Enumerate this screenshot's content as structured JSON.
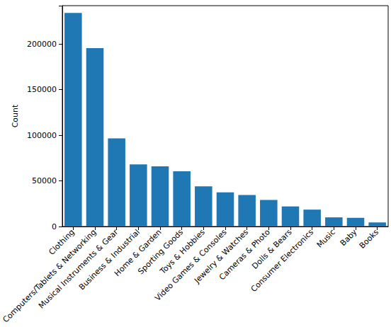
{
  "chart_data": {
    "type": "bar",
    "y_label": "Count",
    "categories": [
      "Clothing",
      "Computers/Tablets & Networking",
      "Musical Instruments & Gear",
      "Business & Industrial",
      "Home & Garden",
      "Sporting Goods",
      "Toys & Hobbies",
      "Video Games & Consoles",
      "Jewelry & Watches",
      "Cameras & Photo",
      "Dolls & Bears",
      "Consumer Electronics",
      "Music",
      "Baby",
      "Books"
    ],
    "values": [
      234000,
      195500,
      96500,
      68000,
      66000,
      60500,
      44000,
      37500,
      34500,
      29000,
      22000,
      18500,
      10000,
      9500,
      4500
    ],
    "color": "#1f77b4",
    "ylim": [
      0,
      242000
    ],
    "yticks": [
      0,
      50000,
      100000,
      150000,
      200000
    ],
    "grid": false
  }
}
